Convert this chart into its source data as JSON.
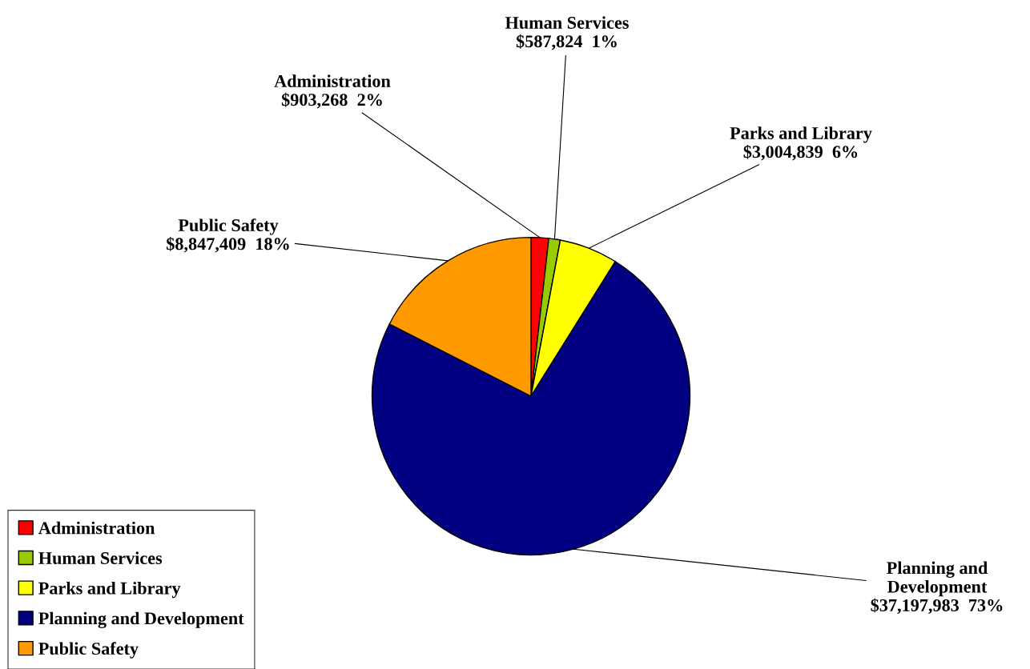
{
  "chart_data": {
    "type": "pie",
    "categories": [
      "Administration",
      "Human Services",
      "Parks and Library",
      "Planning and Development",
      "Public Safety"
    ],
    "values": [
      903268,
      587824,
      3004839,
      37197983,
      8847409
    ],
    "value_labels": [
      "$903,268  2%",
      "$587,824  1%",
      "$3,004,839  6%",
      "$37,197,983  73%",
      "$8,847,409  18%"
    ],
    "colors": [
      "#ff0000",
      "#99cc00",
      "#ffff00",
      "#000080",
      "#ff9900"
    ],
    "legend": "bottom left"
  }
}
